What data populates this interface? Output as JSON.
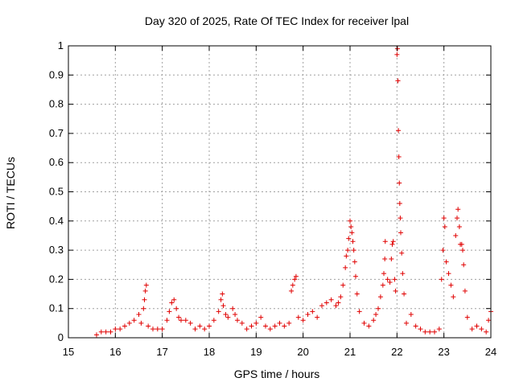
{
  "chart_data": {
    "type": "scatter",
    "title": "Day 320 of 2025, Rate Of TEC Index for receiver lpal",
    "xlabel": "GPS time / hours",
    "ylabel": "ROTI / TECUs",
    "xlim": [
      15,
      24
    ],
    "ylim": [
      0,
      1
    ],
    "x_ticks": [
      "15",
      "16",
      "17",
      "18",
      "19",
      "20",
      "21",
      "22",
      "23",
      "24"
    ],
    "y_ticks": [
      "0",
      "0.1",
      "0.2",
      "0.3",
      "0.4",
      "0.5",
      "0.6",
      "0.7",
      "0.8",
      "0.9",
      "1"
    ],
    "grid": true,
    "marker": "plus",
    "color": "#e00000",
    "series": [
      {
        "points": [
          [
            15.6,
            0.01
          ],
          [
            15.7,
            0.02
          ],
          [
            15.8,
            0.02
          ],
          [
            15.9,
            0.02
          ],
          [
            16.0,
            0.03
          ],
          [
            16.1,
            0.03
          ],
          [
            16.2,
            0.04
          ],
          [
            16.3,
            0.05
          ],
          [
            16.4,
            0.06
          ],
          [
            16.5,
            0.08
          ],
          [
            16.55,
            0.05
          ],
          [
            16.6,
            0.1
          ],
          [
            16.62,
            0.13
          ],
          [
            16.64,
            0.16
          ],
          [
            16.66,
            0.18
          ],
          [
            16.7,
            0.04
          ],
          [
            16.8,
            0.03
          ],
          [
            16.9,
            0.03
          ],
          [
            17.0,
            0.03
          ],
          [
            17.1,
            0.06
          ],
          [
            17.15,
            0.09
          ],
          [
            17.2,
            0.12
          ],
          [
            17.25,
            0.13
          ],
          [
            17.3,
            0.1
          ],
          [
            17.35,
            0.07
          ],
          [
            17.4,
            0.06
          ],
          [
            17.5,
            0.06
          ],
          [
            17.6,
            0.05
          ],
          [
            17.7,
            0.03
          ],
          [
            17.8,
            0.04
          ],
          [
            17.9,
            0.03
          ],
          [
            18.0,
            0.04
          ],
          [
            18.1,
            0.06
          ],
          [
            18.2,
            0.09
          ],
          [
            18.25,
            0.13
          ],
          [
            18.28,
            0.15
          ],
          [
            18.3,
            0.11
          ],
          [
            18.35,
            0.08
          ],
          [
            18.4,
            0.07
          ],
          [
            18.5,
            0.1
          ],
          [
            18.55,
            0.08
          ],
          [
            18.6,
            0.06
          ],
          [
            18.7,
            0.05
          ],
          [
            18.8,
            0.03
          ],
          [
            18.9,
            0.04
          ],
          [
            19.0,
            0.05
          ],
          [
            19.1,
            0.07
          ],
          [
            19.2,
            0.04
          ],
          [
            19.3,
            0.03
          ],
          [
            19.4,
            0.04
          ],
          [
            19.5,
            0.05
          ],
          [
            19.6,
            0.04
          ],
          [
            19.7,
            0.05
          ],
          [
            19.75,
            0.16
          ],
          [
            19.78,
            0.18
          ],
          [
            19.82,
            0.2
          ],
          [
            19.85,
            0.21
          ],
          [
            19.9,
            0.07
          ],
          [
            20.0,
            0.06
          ],
          [
            20.1,
            0.08
          ],
          [
            20.2,
            0.09
          ],
          [
            20.3,
            0.07
          ],
          [
            20.4,
            0.11
          ],
          [
            20.5,
            0.12
          ],
          [
            20.6,
            0.13
          ],
          [
            20.7,
            0.11
          ],
          [
            20.75,
            0.12
          ],
          [
            20.8,
            0.14
          ],
          [
            20.85,
            0.18
          ],
          [
            20.9,
            0.24
          ],
          [
            20.92,
            0.28
          ],
          [
            20.95,
            0.3
          ],
          [
            20.97,
            0.34
          ],
          [
            21.0,
            0.4
          ],
          [
            21.02,
            0.38
          ],
          [
            21.04,
            0.36
          ],
          [
            21.06,
            0.33
          ],
          [
            21.08,
            0.3
          ],
          [
            21.1,
            0.26
          ],
          [
            21.12,
            0.21
          ],
          [
            21.15,
            0.15
          ],
          [
            21.2,
            0.09
          ],
          [
            21.3,
            0.05
          ],
          [
            21.4,
            0.04
          ],
          [
            21.5,
            0.06
          ],
          [
            21.55,
            0.08
          ],
          [
            21.6,
            0.1
          ],
          [
            21.65,
            0.14
          ],
          [
            21.7,
            0.18
          ],
          [
            21.72,
            0.22
          ],
          [
            21.74,
            0.27
          ],
          [
            21.75,
            0.33
          ],
          [
            21.8,
            0.2
          ],
          [
            21.85,
            0.19
          ],
          [
            21.88,
            0.27
          ],
          [
            21.9,
            0.32
          ],
          [
            21.92,
            0.33
          ],
          [
            21.95,
            0.2
          ],
          [
            21.97,
            0.16
          ],
          [
            22.0,
            0.97
          ],
          [
            22.01,
            0.99
          ],
          [
            22.02,
            0.88
          ],
          [
            22.03,
            0.71
          ],
          [
            22.04,
            0.62
          ],
          [
            22.05,
            0.53
          ],
          [
            22.06,
            0.46
          ],
          [
            22.07,
            0.41
          ],
          [
            22.08,
            0.36
          ],
          [
            22.1,
            0.29
          ],
          [
            22.12,
            0.22
          ],
          [
            22.15,
            0.15
          ],
          [
            22.2,
            0.05
          ],
          [
            22.3,
            0.08
          ],
          [
            22.4,
            0.04
          ],
          [
            22.5,
            0.03
          ],
          [
            22.6,
            0.02
          ],
          [
            22.7,
            0.02
          ],
          [
            22.8,
            0.02
          ],
          [
            22.9,
            0.03
          ],
          [
            22.95,
            0.2
          ],
          [
            22.98,
            0.3
          ],
          [
            23.0,
            0.41
          ],
          [
            23.02,
            0.38
          ],
          [
            23.05,
            0.26
          ],
          [
            23.1,
            0.22
          ],
          [
            23.15,
            0.18
          ],
          [
            23.2,
            0.14
          ],
          [
            23.25,
            0.35
          ],
          [
            23.28,
            0.41
          ],
          [
            23.3,
            0.44
          ],
          [
            23.33,
            0.38
          ],
          [
            23.35,
            0.32
          ],
          [
            23.38,
            0.32
          ],
          [
            23.4,
            0.3
          ],
          [
            23.42,
            0.25
          ],
          [
            23.45,
            0.16
          ],
          [
            23.5,
            0.07
          ],
          [
            23.6,
            0.03
          ],
          [
            23.7,
            0.04
          ],
          [
            23.8,
            0.03
          ],
          [
            23.9,
            0.02
          ],
          [
            23.95,
            0.06
          ],
          [
            24.0,
            0.09
          ]
        ]
      }
    ]
  }
}
